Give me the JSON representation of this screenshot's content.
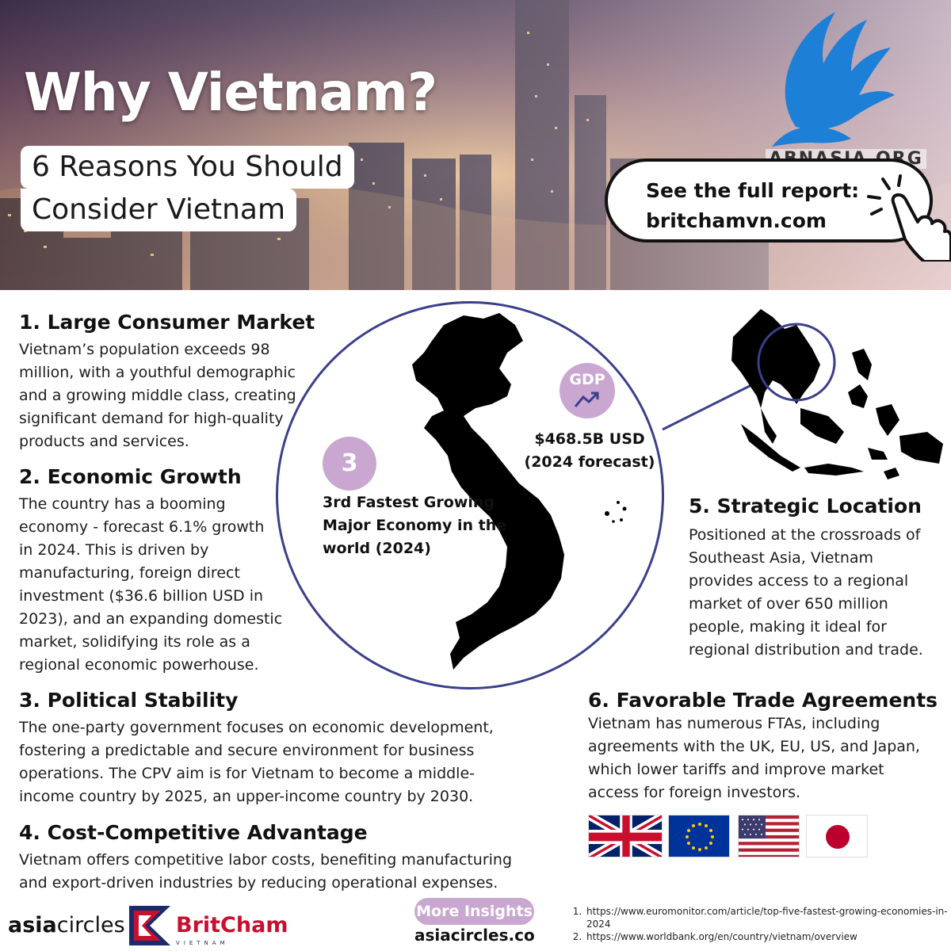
{
  "header": {
    "title": "Why Vietnam?",
    "subtitle_line1": "6 Reasons You Should",
    "subtitle_line2": "Consider Vietnam",
    "report_line1": "See the full report:",
    "report_line2": "britchamvn.com",
    "logo_text": "ABNASIA.ORG"
  },
  "sections": {
    "s1": {
      "heading": "1. Large Consumer Market",
      "lines": [
        "Vietnam’s population exceeds 98",
        "million, with a youthful demographic",
        "and a growing middle class, creating",
        "significant demand for high-quality",
        "products and services."
      ]
    },
    "s2": {
      "heading": "2. Economic Growth",
      "lines": [
        "The country has a booming",
        "economy - forecast 6.1% growth",
        "in 2024. This is driven by",
        "manufacturing, foreign direct",
        "investment ($36.6 billion USD in",
        "2023), and an expanding domestic",
        "market, solidifying its role as a",
        "regional economic powerhouse."
      ]
    },
    "s3": {
      "heading": "3. Political Stability",
      "lines": [
        "The one-party government focuses on economic development,",
        "fostering a predictable and secure environment for business",
        "operations. The CPV aim is for Vietnam to become a middle-",
        "income country by 2025, an upper-income country by 2030."
      ]
    },
    "s4": {
      "heading": "4. Cost-Competitive Advantage",
      "lines": [
        "Vietnam offers competitive labor costs, benefiting manufacturing",
        "and export-driven industries by reducing operational expenses."
      ]
    },
    "s5": {
      "heading": "5. Strategic Location",
      "lines": [
        "Positioned at the crossroads of",
        "Southeast Asia, Vietnam",
        "provides access to a regional",
        "market of over 650 million",
        "people, making it ideal for",
        "regional distribution and trade."
      ]
    },
    "s6": {
      "heading": "6. Favorable Trade Agreements",
      "lines": [
        "Vietnam has numerous FTAs, including",
        "agreements with the UK, EU, US, and Japan,",
        "which lower tariffs and improve market",
        "access for foreign investors."
      ]
    }
  },
  "center": {
    "rank_number": "3",
    "rank_line1": "3rd Fastest Growing",
    "rank_line2": "Major Economy in the",
    "rank_line3": "world (2024)",
    "gdp_label": "GDP",
    "gdp_value": "$468.5B USD",
    "gdp_note": "(2024 forecast)"
  },
  "flags": [
    "uk-flag",
    "eu-flag",
    "us-flag",
    "japan-flag"
  ],
  "footer": {
    "asia_bold": "asia",
    "asia_light": "circles",
    "britcham": "BritCham",
    "britcham_sub": "VIETNAM",
    "insights_label": "More Insights",
    "site": "asiacircles.co",
    "refs": [
      "https://www.euromonitor.com/article/top-five-fastest-growing-economies-in-2024",
      "https://www.worldbank.org/en/country/vietnam/overview"
    ]
  },
  "colors": {
    "accent_purple": "#c9a7d1",
    "circle_navy": "#3b3f8a",
    "britcham_red": "#c8102e",
    "logo_blue": "#1e7fd6"
  }
}
